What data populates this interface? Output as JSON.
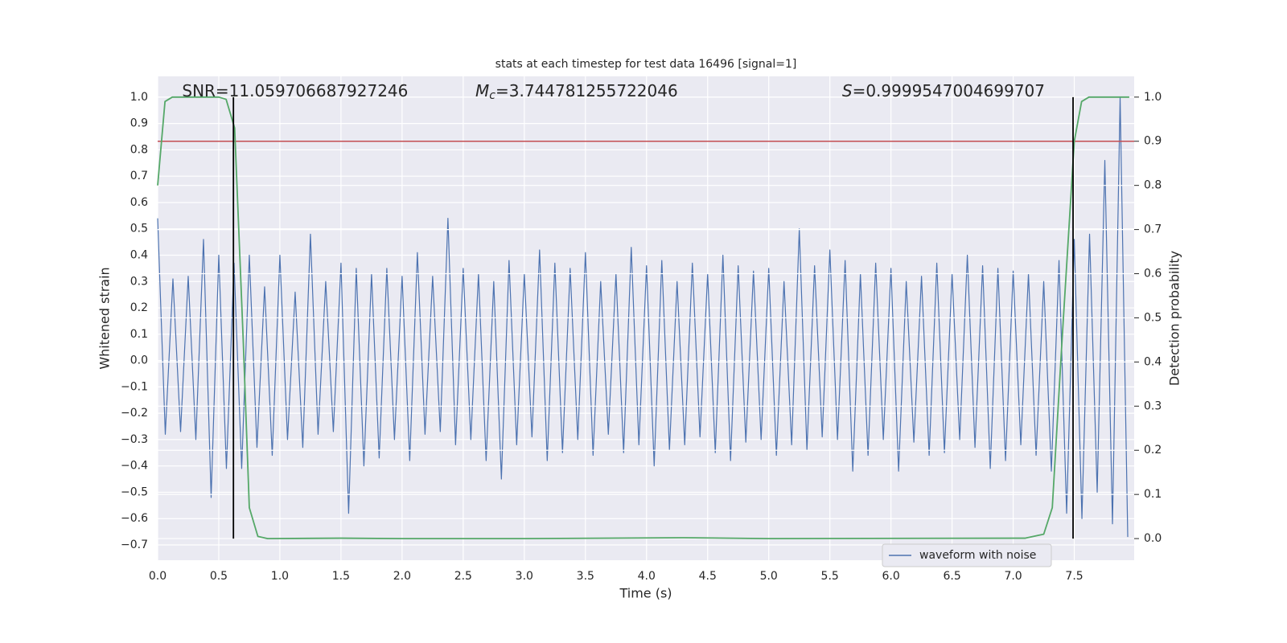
{
  "chart_data": {
    "type": "line",
    "title": "stats at each timestep for test data 16496 [signal=1]",
    "xlabel": "Time (s)",
    "ylabel": "Whitened strain",
    "y2label": "Detection probability",
    "annotations": [
      {
        "text": "SNR=11.059706687927246",
        "x": 0.2
      },
      {
        "symbol": "M",
        "subscript": "c",
        "text": "=3.744781255722046",
        "x": 2.6
      },
      {
        "symbol": "S",
        "text": "=0.9999547004699707",
        "x": 5.6
      }
    ],
    "xlim": [
      0,
      7.99
    ],
    "ylim": [
      -0.758,
      1.079
    ],
    "y2lim": [
      -0.049,
      1.047
    ],
    "xticks": [
      {
        "value": 0,
        "label": "0.0"
      },
      0.5,
      {
        "value": 1,
        "label": "1.0"
      },
      1.5,
      {
        "value": 2,
        "label": "2.0"
      },
      2.5,
      {
        "value": 3,
        "label": "3.0"
      },
      3.5,
      {
        "value": 4,
        "label": "4.0"
      },
      4.5,
      {
        "value": 5,
        "label": "5.0"
      },
      5.5,
      {
        "value": 6,
        "label": "6.0"
      },
      6.5,
      {
        "value": 7,
        "label": "7.0"
      },
      7.5
    ],
    "yticks": [
      {
        "value": -0.7,
        "label": "−0.7"
      },
      {
        "value": -0.6,
        "label": "−0.6"
      },
      {
        "value": -0.5,
        "label": "−0.5"
      },
      {
        "value": -0.4,
        "label": "−0.4"
      },
      {
        "value": -0.3,
        "label": "−0.3"
      },
      {
        "value": -0.2,
        "label": "−0.2"
      },
      {
        "value": -0.1,
        "label": "−0.1"
      },
      {
        "value": 0,
        "label": "0.0"
      },
      0.1,
      0.2,
      0.3,
      0.4,
      0.5,
      0.6,
      0.7,
      0.8,
      0.9,
      {
        "value": 1,
        "label": "1.0"
      }
    ],
    "y2ticks": [
      {
        "value": 0,
        "label": "0.0"
      },
      0.1,
      0.2,
      0.3,
      0.4,
      0.5,
      0.6,
      0.7,
      0.8,
      0.9,
      {
        "value": 1,
        "label": "1.0"
      }
    ],
    "grid": true,
    "legend": "lower right",
    "series": [
      {
        "name": "waveform with noise",
        "color": "#4c72b0",
        "x": [
          0,
          0.0625,
          0.125,
          0.1875,
          0.25,
          0.3125,
          0.375,
          0.4375,
          0.5,
          0.5625,
          0.625,
          0.6875,
          0.75,
          0.8125,
          0.875,
          0.9375,
          1,
          1.0625,
          1.125,
          1.1875,
          1.25,
          1.3125,
          1.375,
          1.4375,
          1.5,
          1.5625,
          1.625,
          1.6875,
          1.75,
          1.8125,
          1.875,
          1.9375,
          2,
          2.0625,
          2.125,
          2.1875,
          2.25,
          2.3125,
          2.375,
          2.4375,
          2.5,
          2.5625,
          2.625,
          2.6875,
          2.75,
          2.8125,
          2.875,
          2.9375,
          3,
          3.0625,
          3.125,
          3.1875,
          3.25,
          3.3125,
          3.375,
          3.4375,
          3.5,
          3.5625,
          3.625,
          3.6875,
          3.75,
          3.8125,
          3.875,
          3.9375,
          4,
          4.0625,
          4.125,
          4.1875,
          4.25,
          4.3125,
          4.375,
          4.4375,
          4.5,
          4.5625,
          4.625,
          4.6875,
          4.75,
          4.8125,
          4.875,
          4.9375,
          5,
          5.0625,
          5.125,
          5.1875,
          5.25,
          5.3125,
          5.375,
          5.4375,
          5.5,
          5.5625,
          5.625,
          5.6875,
          5.75,
          5.8125,
          5.875,
          5.9375,
          6,
          6.0625,
          6.125,
          6.1875,
          6.25,
          6.3125,
          6.375,
          6.4375,
          6.5,
          6.5625,
          6.625,
          6.6875,
          6.75,
          6.8125,
          6.875,
          6.9375,
          7,
          7.0625,
          7.125,
          7.1875,
          7.25,
          7.3125,
          7.375,
          7.4375,
          7.5,
          7.5625,
          7.625,
          7.6875,
          7.75,
          7.8125,
          7.875,
          7.9375
        ],
        "values": [
          0.54,
          -0.28,
          0.31,
          -0.27,
          0.32,
          -0.3,
          0.46,
          -0.52,
          0.4,
          -0.41,
          0.37,
          -0.41,
          0.4,
          -0.33,
          0.28,
          -0.36,
          0.4,
          -0.3,
          0.26,
          -0.33,
          0.48,
          -0.28,
          0.3,
          -0.27,
          0.37,
          -0.58,
          0.35,
          -0.4,
          0.33,
          -0.37,
          0.35,
          -0.3,
          0.32,
          -0.38,
          0.41,
          -0.28,
          0.32,
          -0.27,
          0.54,
          -0.32,
          0.35,
          -0.3,
          0.33,
          -0.38,
          0.3,
          -0.45,
          0.38,
          -0.32,
          0.33,
          -0.29,
          0.42,
          -0.38,
          0.37,
          -0.35,
          0.35,
          -0.3,
          0.41,
          -0.36,
          0.3,
          -0.28,
          0.33,
          -0.35,
          0.43,
          -0.32,
          0.36,
          -0.4,
          0.38,
          -0.34,
          0.3,
          -0.32,
          0.37,
          -0.29,
          0.33,
          -0.35,
          0.4,
          -0.38,
          0.36,
          -0.31,
          0.34,
          -0.3,
          0.35,
          -0.36,
          0.3,
          -0.32,
          0.5,
          -0.34,
          0.36,
          -0.29,
          0.42,
          -0.3,
          0.38,
          -0.42,
          0.33,
          -0.36,
          0.37,
          -0.3,
          0.35,
          -0.42,
          0.3,
          -0.31,
          0.32,
          -0.36,
          0.37,
          -0.35,
          0.33,
          -0.3,
          0.4,
          -0.33,
          0.36,
          -0.41,
          0.35,
          -0.38,
          0.34,
          -0.32,
          0.33,
          -0.36,
          0.3,
          -0.42,
          0.38,
          -0.58,
          0.46,
          -0.6,
          0.48,
          -0.5,
          0.76,
          -0.62,
          1.0,
          -0.67
        ]
      },
      {
        "color": "#55a868",
        "axis": "y2",
        "x": [
          0,
          0.06,
          0.12,
          0.5,
          0.56,
          0.63,
          0.7,
          0.75,
          0.82,
          0.9,
          1.5,
          2.0,
          3.0,
          4.3,
          5.0,
          7.1,
          7.25,
          7.32,
          7.4,
          7.5,
          7.56,
          7.62,
          7.95
        ],
        "values": [
          0.8,
          0.99,
          1.0,
          1.0,
          0.995,
          0.93,
          0.45,
          0.07,
          0.005,
          0.0,
          0.001,
          0.0,
          0.0,
          0.002,
          0.0,
          0.001,
          0.01,
          0.07,
          0.45,
          0.9,
          0.99,
          1.0,
          1.0
        ]
      }
    ],
    "hlines": [
      {
        "value": 0.9,
        "axis": "y2",
        "color": "#c44e52"
      }
    ],
    "vlines": [
      {
        "x": 0.62,
        "ymin": 0,
        "ymax": 1,
        "axis": "y2",
        "color": "#000000"
      },
      {
        "x": 7.49,
        "ymin": 0,
        "ymax": 1,
        "axis": "y2",
        "color": "#000000"
      }
    ]
  }
}
